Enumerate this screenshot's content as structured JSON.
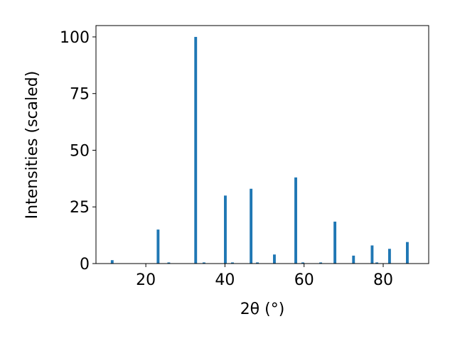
{
  "chart_data": {
    "type": "bar",
    "x_label": "2θ (°)",
    "y_label": "Intensities (scaled)",
    "color": "#1f77b4",
    "x": [
      11.5,
      23.1,
      25.8,
      32.6,
      34.7,
      40.1,
      41.9,
      46.6,
      48.2,
      52.5,
      57.9,
      59.7,
      64.2,
      67.8,
      72.5,
      77.2,
      78.4,
      81.6,
      86.1
    ],
    "values": [
      1.5,
      15,
      0.5,
      100,
      0.5,
      30,
      0.5,
      33,
      0.5,
      4,
      38,
      0.5,
      0.5,
      18.5,
      3.5,
      8,
      0.5,
      6.5,
      9.5
    ],
    "xlim": [
      7.4,
      91.5
    ],
    "ylim": [
      0,
      105
    ],
    "xticks": [
      20,
      40,
      60,
      80
    ],
    "yticks": [
      0,
      25,
      50,
      75,
      100
    ],
    "grid": false
  }
}
